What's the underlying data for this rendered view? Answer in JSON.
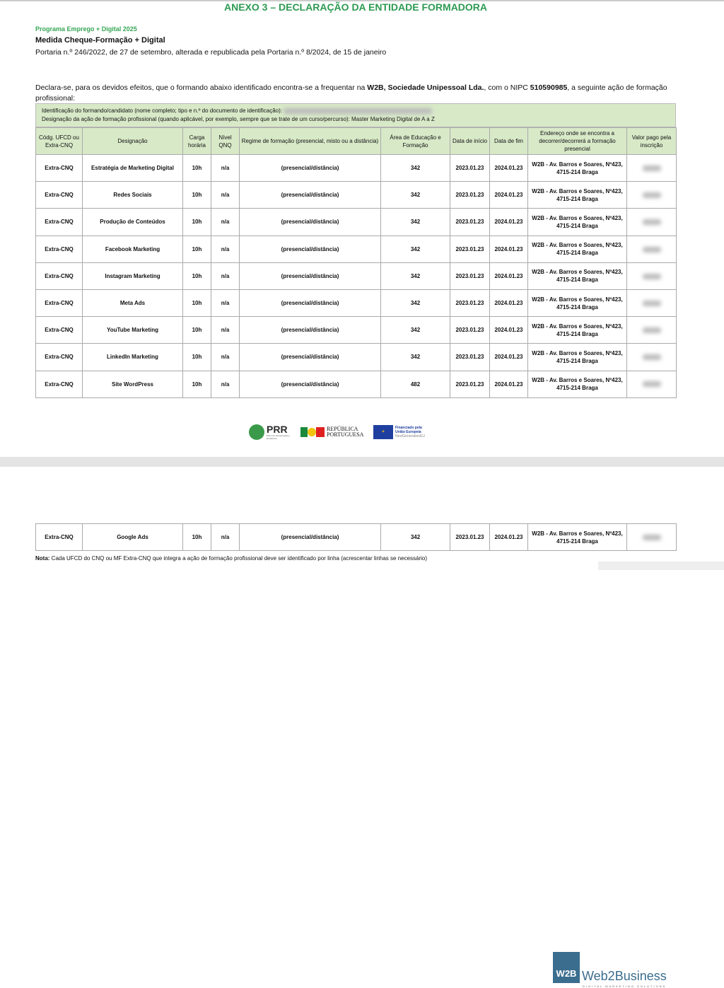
{
  "header": {
    "title": "ANEXO 3 – DECLARAÇÃO DA ENTIDADE FORMADORA",
    "program": "Programa Emprego + Digital 2025",
    "measure": "Medida Cheque-Formação + Digital",
    "portaria": "Portaria n.º 246/2022, de 27 de setembro, alterada e republicada pela Portaria n.º 8/2024, de 15 de janeiro"
  },
  "declaration": {
    "before": "Declara-se, para os devidos efeitos, que o formando abaixo identificado encontra-se a frequentar na ",
    "company": "W2B, Sociedade Unipessoal Lda.",
    "middle": ", com o NIPC ",
    "nipc": "510590985",
    "after": ", a seguinte ação de formação profissional:"
  },
  "info": {
    "id_label": "Identificação do formando/candidato (nome completo; tipo e n.º do documento de identificação):",
    "course_label": "Designação da ação de formação profissional (quando aplicável, por exemplo, sempre que se trate de um curso/percurso): Master Marketing Digital de A a Z"
  },
  "table": {
    "headers": [
      "Códg. UFCD ou Extra-CNQ",
      "Designação",
      "Carga horária",
      "Nível QNQ",
      "Regime de formação (presencial, misto ou a distância)",
      "Área de Educação e Formação",
      "Data de início",
      "Data de fim",
      "Endereço onde se encontra a decorrer/decorrerá a formação presencial",
      "Valor pago pela inscrição"
    ],
    "rows": [
      [
        "Extra-CNQ",
        "Estratégia de Marketing Digital",
        "10h",
        "n/a",
        "(presencial/distância)",
        "342",
        "2023.01.23",
        "2024.01.23",
        "W2B - Av. Barros e Soares, Nº423, 4715-214 Braga"
      ],
      [
        "Extra-CNQ",
        "Redes Sociais",
        "10h",
        "n/a",
        "(presencial/distância)",
        "342",
        "2023.01.23",
        "2024.01.23",
        "W2B - Av. Barros e Soares, Nº423, 4715-214 Braga"
      ],
      [
        "Extra-CNQ",
        "Produção de Conteúdos",
        "10h",
        "n/a",
        "(presencial/distância)",
        "342",
        "2023.01.23",
        "2024.01.23",
        "W2B - Av. Barros e Soares, Nº423, 4715-214 Braga"
      ],
      [
        "Extra-CNQ",
        "Facebook Marketing",
        "10h",
        "n/a",
        "(presencial/distância)",
        "342",
        "2023.01.23",
        "2024.01.23",
        "W2B - Av. Barros e Soares, Nº423, 4715-214 Braga"
      ],
      [
        "Extra-CNQ",
        "Instagram Marketing",
        "10h",
        "n/a",
        "(presencial/distância)",
        "342",
        "2023.01.23",
        "2024.01.23",
        "W2B - Av. Barros e Soares, Nº423, 4715-214 Braga"
      ],
      [
        "Extra-CNQ",
        "Meta Ads",
        "10h",
        "n/a",
        "(presencial/distância)",
        "342",
        "2023.01.23",
        "2024.01.23",
        "W2B - Av. Barros e Soares, Nº423, 4715-214 Braga"
      ],
      [
        "Extra-CNQ",
        "YouTube Marketing",
        "10h",
        "n/a",
        "(presencial/distância)",
        "342",
        "2023.01.23",
        "2024.01.23",
        "W2B - Av. Barros e Soares, Nº423, 4715-214 Braga"
      ],
      [
        "Extra-CNQ",
        "LinkedIn Marketing",
        "10h",
        "n/a",
        "(presencial/distância)",
        "342",
        "2023.01.23",
        "2024.01.23",
        "W2B - Av. Barros e Soares, Nº423, 4715-214 Braga"
      ],
      [
        "Extra-CNQ",
        "Site WordPress",
        "10h",
        "n/a",
        "(presencial/distância)",
        "482",
        "2023.01.23",
        "2024.01.23",
        "W2B - Av. Barros e Soares, Nº423, 4715-214 Braga"
      ]
    ],
    "page2_rows": [
      [
        "Extra-CNQ",
        "Google Ads",
        "10h",
        "n/a",
        "(presencial/distância)",
        "342",
        "2023.01.23",
        "2024.01.23",
        "W2B - Av. Barros e Soares, Nº423, 4715-214 Braga"
      ]
    ]
  },
  "note": {
    "label": "Nota:",
    "text": " Cada UFCD do CNQ ou MF Extra-CNQ que integra a ação de formação profissional deve ser identificado por linha (acrescentar linhas se necessário)"
  },
  "logos": {
    "prr": "PRR",
    "prr_sub": "Plano de Recuperação e Resiliência",
    "republica": "REPÚBLICA PORTUGUESA",
    "eu": "Financiado pela União Europeia",
    "eu_sub": "NextGenerationEU",
    "w2b_mark": "W2B",
    "w2b_name": "Web2Business",
    "w2b_tag": "DIGITAL MARKETING SOLUTIONS"
  },
  "colors": {
    "title_green": "#2e9a52",
    "header_bg": "#d8e9c8",
    "brand_blue": "#3b6d8f"
  }
}
